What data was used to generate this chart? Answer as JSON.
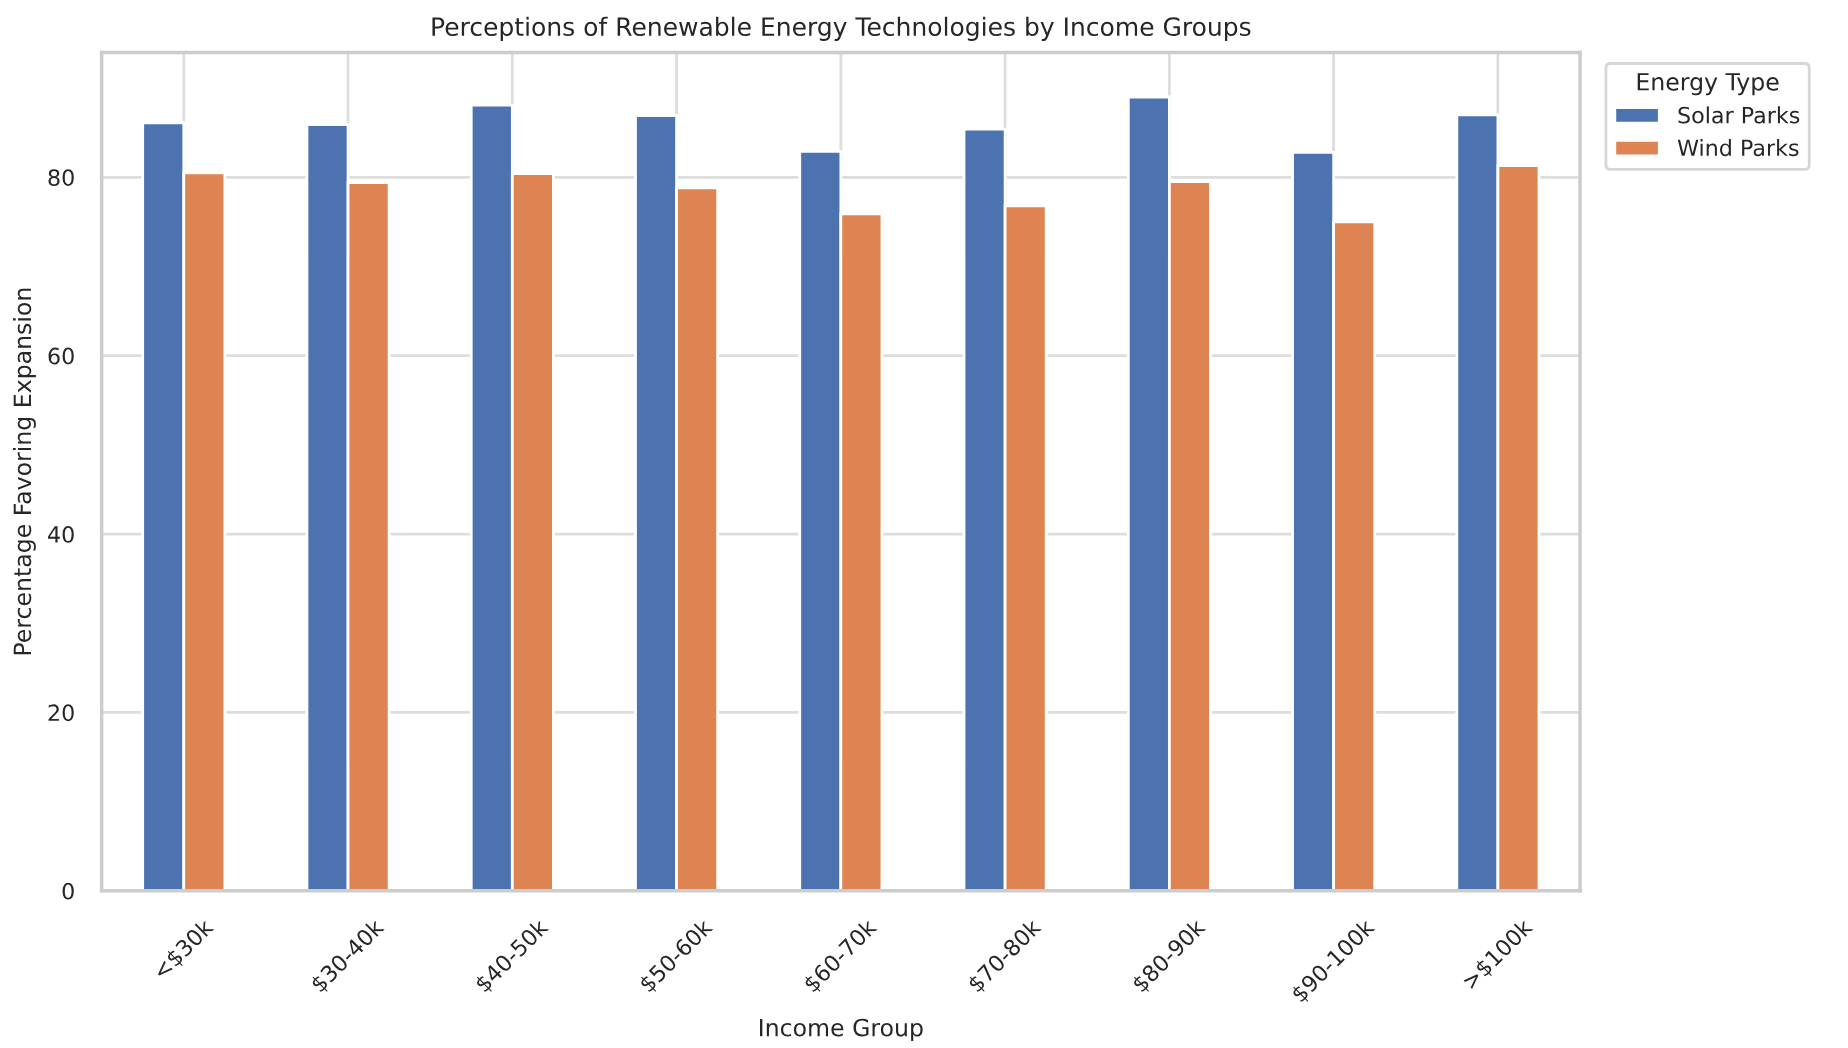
{
  "chart_data": {
    "type": "bar",
    "title": "Perceptions of Renewable Energy Technologies by Income Groups",
    "xlabel": "Income Group",
    "ylabel": "Percentage Favoring Expansion",
    "legend_title": "Energy Type",
    "categories": [
      "<$30k",
      "$30-40k",
      "$40-50k",
      "$50-60k",
      "$60-70k",
      "$70-80k",
      "$80-90k",
      "$90-100k",
      ">$100k"
    ],
    "series": [
      {
        "name": "Solar Parks",
        "color": "#4c72b0",
        "values": [
          86.1,
          85.9,
          88.1,
          86.9,
          82.9,
          85.4,
          89.0,
          82.8,
          87.0
        ]
      },
      {
        "name": "Wind Parks",
        "color": "#dd8452",
        "values": [
          80.5,
          79.4,
          80.4,
          78.8,
          75.9,
          76.8,
          79.5,
          75.0,
          81.3
        ]
      }
    ],
    "ylim": [
      0,
      94
    ],
    "yticks": [
      0,
      20,
      40,
      60,
      80
    ],
    "grid": true,
    "legend": "top right"
  }
}
